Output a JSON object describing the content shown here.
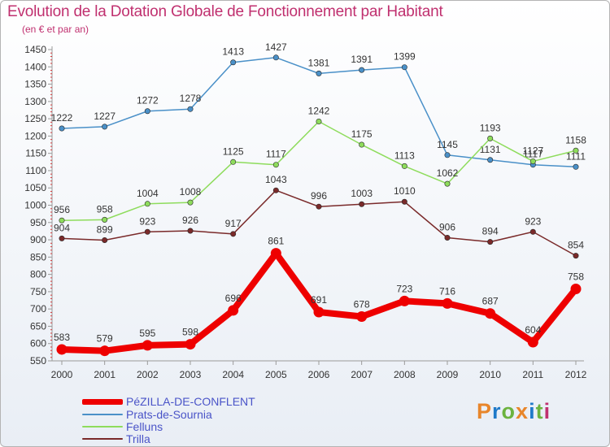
{
  "header": {
    "title": "Evolution de la Dotation Globale de Fonctionnement par Habitant",
    "subtitle": "(en € et par an)"
  },
  "logo": {
    "text": "Proxiti",
    "colors": [
      "#e8862b",
      "#1f7ac9",
      "#6cb33f",
      "#e8862b",
      "#1f7ac9",
      "#6cb33f",
      "#c0306f"
    ]
  },
  "chart_data": {
    "type": "line",
    "title": "Evolution de la Dotation Globale de Fonctionnement par Habitant",
    "subtitle": "(en € et par an)",
    "xlabel": "",
    "ylabel": "",
    "x": [
      "2000",
      "2001",
      "2002",
      "2003",
      "2004",
      "2005",
      "2006",
      "2007",
      "2008",
      "2009",
      "2010",
      "2011",
      "2012"
    ],
    "ylim": [
      550,
      1450
    ],
    "ytick_step": 50,
    "grid": false,
    "legend_position": "bottom-left",
    "series": [
      {
        "name": "PéZILLA-DE-CONFLENT",
        "color": "#ee0000",
        "emphasis": true,
        "values": [
          583,
          579,
          595,
          598,
          696,
          861,
          691,
          678,
          723,
          716,
          687,
          604,
          758
        ],
        "labels": [
          "583",
          "579",
          "595",
          "598",
          "696",
          "861",
          "691",
          "678",
          "723",
          "716",
          "687",
          "604",
          "758"
        ]
      },
      {
        "name": "Prats-de-Sournia",
        "color": "#4a90c8",
        "emphasis": false,
        "values": [
          1222,
          1227,
          1272,
          1278,
          1413,
          1427,
          1381,
          1391,
          1399,
          1145,
          1131,
          1117,
          1111
        ],
        "labels": [
          "1222",
          "1227",
          "1272",
          "1278",
          "1413",
          "1427",
          "1381",
          "1391",
          "1399",
          "1145",
          "1131",
          "1117",
          "1111"
        ]
      },
      {
        "name": "Felluns",
        "color": "#8edc5c",
        "emphasis": false,
        "values": [
          956,
          958,
          1004,
          1008,
          1125,
          1117,
          1242,
          1175,
          1113,
          1062,
          1193,
          1127,
          1158
        ],
        "labels": [
          "956",
          "958",
          "1004",
          "1008",
          "1125",
          "1117",
          "1242",
          "1175",
          "1113",
          "1062",
          "1193",
          "1127",
          "1158"
        ]
      },
      {
        "name": "Trilla",
        "color": "#7a2a2a",
        "emphasis": false,
        "values": [
          904,
          899,
          923,
          926,
          917,
          1043,
          996,
          1003,
          1010,
          906,
          894,
          923,
          854
        ],
        "labels": [
          "904",
          "899",
          "923",
          "926",
          "917",
          "1043",
          "996",
          "1003",
          "1010",
          "906",
          "894",
          "923",
          "854"
        ]
      }
    ]
  }
}
